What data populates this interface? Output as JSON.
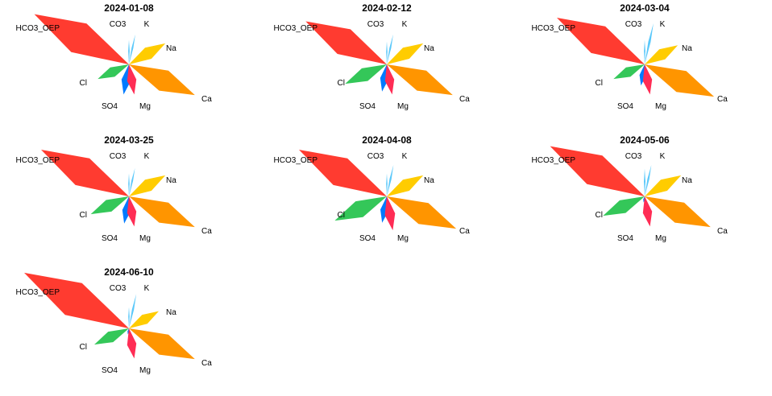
{
  "colors": {
    "HCO3_OEP": "#ff3b30",
    "CO3": "#5ac8fa",
    "K": "#5ac8fa",
    "Na": "#ffcc00",
    "Ca": "#ff9500",
    "Mg": "#ff2d55",
    "SO4": "#007aff",
    "Cl": "#34c759"
  },
  "chart_data": {
    "type": "radar-star",
    "parameters": [
      "HCO3_OEP",
      "CO3",
      "K",
      "Na",
      "Ca",
      "Mg",
      "SO4",
      "Cl"
    ],
    "charts": [
      {
        "title": "2024-01-08",
        "values": {
          "HCO3_OEP": 140,
          "CO3": 32,
          "K": 40,
          "Na": 55,
          "Ca": 95,
          "Mg": 40,
          "SO4": 40,
          "Cl": 45
        }
      },
      {
        "title": "2024-02-12",
        "values": {
          "HCO3_OEP": 120,
          "CO3": 30,
          "K": 40,
          "Na": 55,
          "Ca": 95,
          "Mg": 40,
          "SO4": 36,
          "Cl": 60
        }
      },
      {
        "title": "2024-03-04",
        "values": {
          "HCO3_OEP": 130,
          "CO3": 32,
          "K": 55,
          "Na": 50,
          "Ca": 100,
          "Mg": 40,
          "SO4": 28,
          "Cl": 45
        }
      },
      {
        "title": "2024-03-25",
        "values": {
          "HCO3_OEP": 130,
          "CO3": 30,
          "K": 38,
          "Na": 55,
          "Ca": 95,
          "Mg": 40,
          "SO4": 36,
          "Cl": 55
        }
      },
      {
        "title": "2024-04-08",
        "values": {
          "HCO3_OEP": 130,
          "CO3": 30,
          "K": 42,
          "Na": 55,
          "Ca": 100,
          "Mg": 45,
          "SO4": 35,
          "Cl": 75
        }
      },
      {
        "title": "2024-05-06",
        "values": {
          "HCO3_OEP": 140,
          "CO3": 36,
          "K": 42,
          "Na": 55,
          "Ca": 95,
          "Mg": 40,
          "SO4": 8,
          "Cl": 60
        }
      },
      {
        "title": "2024-06-10",
        "values": {
          "HCO3_OEP": 155,
          "CO3": 28,
          "K": 46,
          "Na": 45,
          "Ca": 95,
          "Mg": 40,
          "SO4": 8,
          "Cl": 50
        }
      }
    ]
  }
}
